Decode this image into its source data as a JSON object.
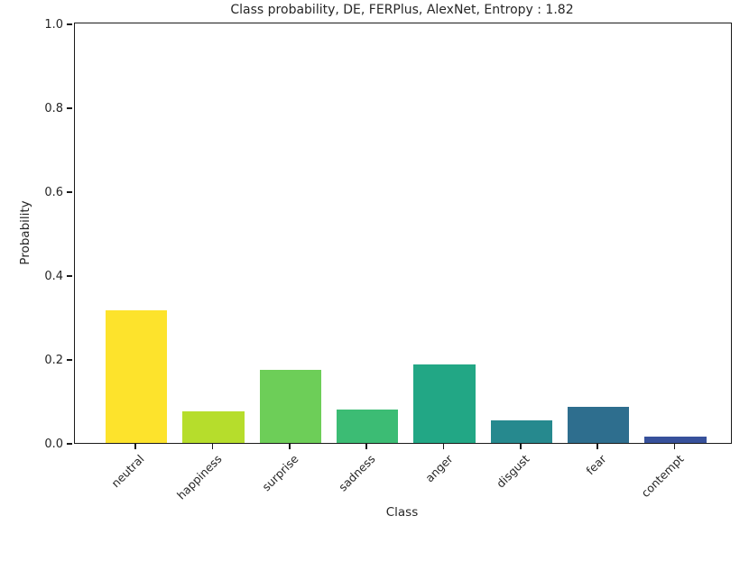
{
  "chart_data": {
    "type": "bar",
    "title": "Class probability, DE, FERPlus, AlexNet, Entropy : 1.82",
    "xlabel": "Class",
    "ylabel": "Probability",
    "categories": [
      "neutral",
      "happiness",
      "surprise",
      "sadness",
      "anger",
      "disgust",
      "fear",
      "contempt"
    ],
    "values": [
      0.317,
      0.076,
      0.175,
      0.079,
      0.188,
      0.054,
      0.086,
      0.016
    ],
    "bar_colors": [
      "#fde32c",
      "#b6dd2c",
      "#6dce58",
      "#3cbc74",
      "#22a785",
      "#26898e",
      "#2e6e8e",
      "#37519b"
    ],
    "ylim": [
      0.0,
      1.0
    ],
    "yticks": [
      "0.0",
      "0.2",
      "0.4",
      "0.6",
      "0.8",
      "1.0"
    ],
    "grid": false,
    "legend_position": "none",
    "axis_color": "#1a1a1a",
    "background_color": "#ffffff"
  }
}
